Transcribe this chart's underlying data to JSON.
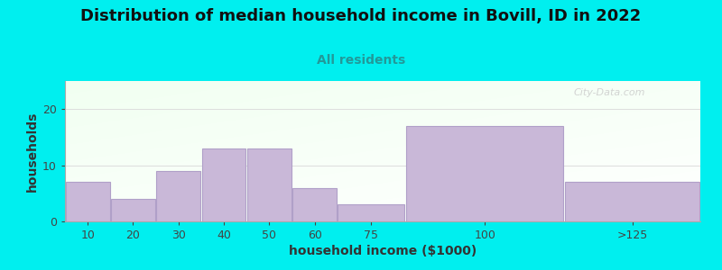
{
  "title": "Distribution of median household income in Bovill, ID in 2022",
  "subtitle": "All residents",
  "xlabel": "household income ($1000)",
  "ylabel": "households",
  "bar_values": [
    7,
    4,
    9,
    13,
    13,
    6,
    3,
    17,
    7
  ],
  "bar_left_edges": [
    0,
    10,
    20,
    30,
    40,
    50,
    60,
    75,
    110
  ],
  "bar_widths": [
    10,
    10,
    10,
    10,
    10,
    10,
    15,
    35,
    30
  ],
  "bar_color": "#c9b8d8",
  "bar_edgecolor": "#b0a0c8",
  "background_outer": "#00efef",
  "yticks": [
    0,
    10,
    20
  ],
  "xtick_labels": [
    "10",
    "20",
    "30",
    "40",
    "50",
    "60",
    "75",
    "100",
    ">125"
  ],
  "xlim": [
    0,
    140
  ],
  "ylim": [
    0,
    25
  ],
  "title_fontsize": 13,
  "subtitle_fontsize": 10,
  "label_fontsize": 10,
  "watermark": "City-Data.com"
}
